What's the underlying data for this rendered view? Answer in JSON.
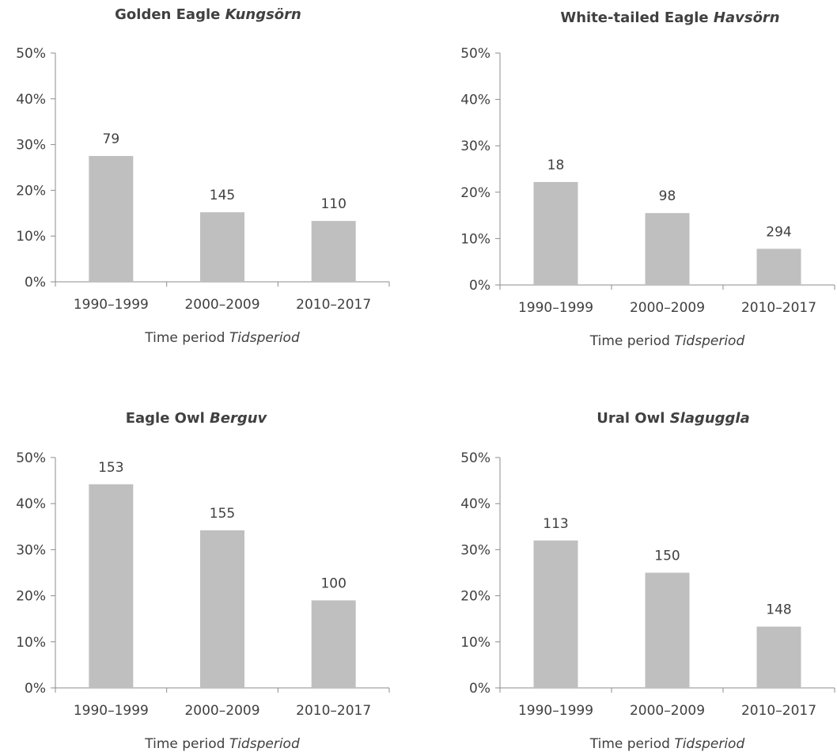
{
  "chart_data": [
    {
      "type": "bar",
      "title": "Golden Eagle",
      "title_italic": "Kungsörn",
      "xlabel": "Time period",
      "xlabel_italic": "Tidsperiod",
      "ylabel": "",
      "categories": [
        "1990–1999",
        "2000–2009",
        "2010–2017"
      ],
      "values": [
        27.5,
        15.2,
        13.3
      ],
      "data_labels": [
        "79",
        "145",
        "110"
      ],
      "y_ticks": [
        "0%",
        "10%",
        "20%",
        "30%",
        "40%",
        "50%"
      ],
      "ylim": [
        0,
        50
      ],
      "grid": false,
      "bar_color": "#bfbfbf"
    },
    {
      "type": "bar",
      "title": "White-tailed Eagle",
      "title_italic": "Havsörn",
      "xlabel": "Time period",
      "xlabel_italic": "Tidsperiod",
      "ylabel": "",
      "categories": [
        "1990–1999",
        "2000–2009",
        "2010–2017"
      ],
      "values": [
        22.2,
        15.5,
        7.8
      ],
      "data_labels": [
        "18",
        "98",
        "294"
      ],
      "y_ticks": [
        "0%",
        "10%",
        "20%",
        "30%",
        "40%",
        "50%"
      ],
      "ylim": [
        0,
        50
      ],
      "grid": false,
      "bar_color": "#bfbfbf"
    },
    {
      "type": "bar",
      "title": "Eagle Owl",
      "title_italic": "Berguv",
      "xlabel": "Time period",
      "xlabel_italic": "Tidsperiod",
      "ylabel": "",
      "categories": [
        "1990–1999",
        "2000–2009",
        "2010–2017"
      ],
      "values": [
        44.2,
        34.2,
        19.0
      ],
      "data_labels": [
        "153",
        "155",
        "100"
      ],
      "y_ticks": [
        "0%",
        "10%",
        "20%",
        "30%",
        "40%",
        "50%"
      ],
      "ylim": [
        0,
        50
      ],
      "grid": false,
      "bar_color": "#bfbfbf"
    },
    {
      "type": "bar",
      "title": "Ural Owl",
      "title_italic": "Slaguggla",
      "xlabel": "Time period",
      "xlabel_italic": "Tidsperiod",
      "ylabel": "",
      "categories": [
        "1990–1999",
        "2000–2009",
        "2010–2017"
      ],
      "values": [
        32.0,
        25.0,
        13.3
      ],
      "data_labels": [
        "113",
        "150",
        "148"
      ],
      "y_ticks": [
        "0%",
        "10%",
        "20%",
        "30%",
        "40%",
        "50%"
      ],
      "ylim": [
        0,
        50
      ],
      "grid": false,
      "bar_color": "#bfbfbf"
    }
  ]
}
